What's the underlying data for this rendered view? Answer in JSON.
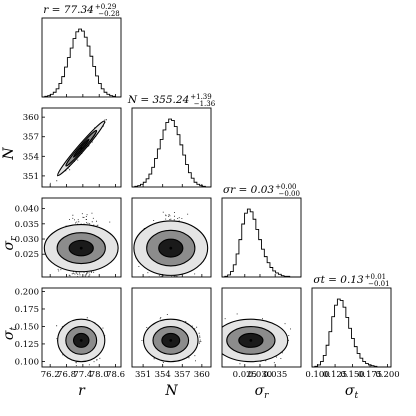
{
  "chart_data": {
    "type": "corner",
    "parameters": [
      {
        "label": "r",
        "title": {
          "text": "r = 77.34",
          "sup": "+0.29",
          "sub": "−0.28"
        },
        "median": 77.34,
        "err_plus": 0.29,
        "err_minus": 0.28,
        "range": [
          75.9,
          78.8
        ],
        "ticks": [
          76.2,
          76.8,
          77.4,
          78.0,
          78.6
        ],
        "tick_labels": [
          "76.2",
          "76.8",
          "77.4",
          "78.0",
          "78.6"
        ],
        "hist": [
          0,
          1,
          2,
          4,
          7,
          12,
          20,
          30,
          44,
          58,
          72,
          86,
          96,
          100,
          97,
          88,
          75,
          60,
          45,
          31,
          20,
          12,
          7,
          4,
          2,
          1,
          0,
          0
        ]
      },
      {
        "label": "N",
        "title": {
          "text": "N = 355.24",
          "sup": "+1.39",
          "sub": "−1.36"
        },
        "median": 355.24,
        "err_plus": 1.39,
        "err_minus": 1.36,
        "range": [
          349.3,
          361.4
        ],
        "ticks": [
          351,
          354,
          357,
          360
        ],
        "tick_labels": [
          "351",
          "354",
          "357",
          "360"
        ],
        "hist": [
          0,
          1,
          2,
          4,
          7,
          12,
          19,
          29,
          42,
          56,
          70,
          84,
          95,
          100,
          98,
          89,
          77,
          62,
          47,
          33,
          21,
          13,
          7,
          4,
          2,
          1,
          0,
          0
        ]
      },
      {
        "label": "σr",
        "title": {
          "text": "σr = 0.03",
          "sup": "+0.00",
          "sub": "−0.00"
        },
        "median": 0.027,
        "err_plus": 0.004,
        "err_minus": 0.004,
        "range": [
          0.0175,
          0.0435
        ],
        "ticks": [
          0.025,
          0.03,
          0.035
        ],
        "tick_labels": [
          "0.025",
          "0.030",
          "0.035"
        ],
        "y_ticks": [
          0.025,
          0.03,
          0.035,
          0.04
        ],
        "y_tick_labels": [
          "0.025",
          "0.030",
          "0.035",
          "0.040"
        ],
        "hist": [
          0,
          1,
          3,
          8,
          18,
          34,
          55,
          78,
          94,
          100,
          96,
          85,
          70,
          55,
          41,
          30,
          21,
          14,
          9,
          6,
          4,
          2,
          1,
          1,
          0,
          0,
          0,
          0
        ]
      },
      {
        "label": "σt",
        "title": {
          "text": "σt = 0.13",
          "sup": "+0.01",
          "sub": "−0.01"
        },
        "median": 0.13,
        "err_plus": 0.01,
        "err_minus": 0.01,
        "range": [
          0.092,
          0.205
        ],
        "ticks": [
          0.1,
          0.125,
          0.15,
          0.175,
          0.2
        ],
        "tick_labels": [
          "0.100",
          "0.125",
          "0.150",
          "0.175",
          "0.200"
        ],
        "y_ticks": [
          0.1,
          0.125,
          0.15,
          0.175,
          0.2
        ],
        "y_tick_labels": [
          "0.100",
          "0.125",
          "0.150",
          "0.175",
          "0.200"
        ],
        "hist": [
          0,
          1,
          3,
          8,
          17,
          32,
          52,
          74,
          91,
          100,
          98,
          88,
          73,
          57,
          42,
          30,
          20,
          13,
          8,
          5,
          3,
          2,
          1,
          0,
          0,
          0,
          0,
          0
        ]
      }
    ],
    "correlations": {
      "r-N": 0.98
    },
    "contour_levels": [
      0.39,
      0.86,
      0.99
    ],
    "contour_fill_colors": [
      "#1a1a1a",
      "#8c8c8c",
      "#e4e4e4"
    ],
    "contour_line_color": "#000000",
    "background": "#ffffff"
  }
}
